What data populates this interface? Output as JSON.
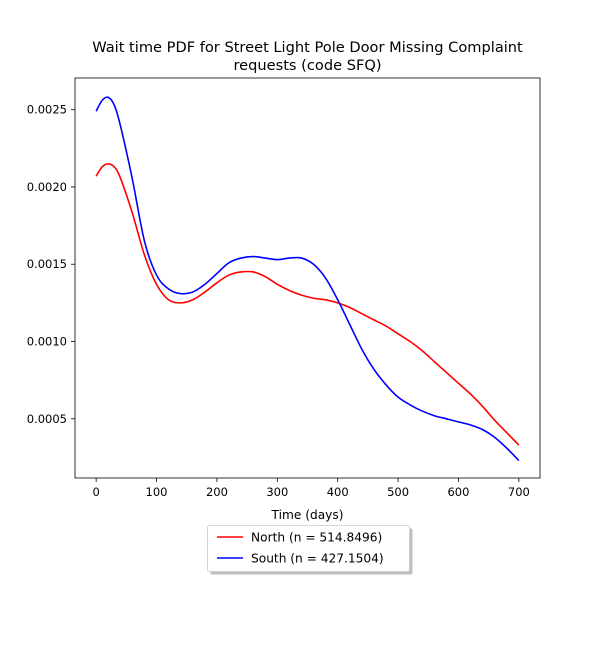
{
  "chart_data": {
    "type": "line",
    "title_line1": "Wait time PDF for Street Light Pole Door Missing Complaint",
    "title_line2": "requests (code SFQ)",
    "xlabel": "Time (days)",
    "ylabel": "",
    "xlim": [
      -35,
      735
    ],
    "ylim": [
      0.000117,
      0.002705
    ],
    "x_ticks": [
      0,
      100,
      200,
      300,
      400,
      500,
      600,
      700
    ],
    "x_tick_labels": [
      "0",
      "100",
      "200",
      "300",
      "400",
      "500",
      "600",
      "700"
    ],
    "y_ticks": [
      0.0005,
      0.001,
      0.0015,
      0.002,
      0.0025
    ],
    "y_tick_labels": [
      "0.0005",
      "0.0010",
      "0.0015",
      "0.0020",
      "0.0025"
    ],
    "grid": false,
    "legend_position": "below plot, centered",
    "series": [
      {
        "name": "North (n = 514.8496)",
        "color": "#ff0000",
        "x": [
          0,
          10,
          20,
          30,
          40,
          60,
          80,
          100,
          120,
          140,
          160,
          180,
          200,
          220,
          240,
          260,
          280,
          300,
          320,
          340,
          360,
          380,
          400,
          420,
          440,
          460,
          480,
          500,
          520,
          540,
          560,
          580,
          600,
          620,
          640,
          660,
          680,
          700
        ],
        "y": [
          0.00207,
          0.00213,
          0.00215,
          0.00213,
          0.00206,
          0.00183,
          0.00156,
          0.00137,
          0.00127,
          0.00125,
          0.00127,
          0.00132,
          0.00138,
          0.00143,
          0.00145,
          0.00145,
          0.00142,
          0.00137,
          0.00133,
          0.0013,
          0.00128,
          0.00127,
          0.00125,
          0.00122,
          0.00118,
          0.00114,
          0.0011,
          0.00105,
          0.001,
          0.00094,
          0.00087,
          0.0008,
          0.00073,
          0.00066,
          0.00058,
          0.00049,
          0.00041,
          0.00033
        ]
      },
      {
        "name": "South (n = 427.1504)",
        "color": "#0000ff",
        "x": [
          0,
          10,
          20,
          30,
          40,
          60,
          80,
          100,
          120,
          140,
          160,
          180,
          200,
          220,
          240,
          260,
          280,
          300,
          320,
          340,
          360,
          380,
          400,
          420,
          440,
          460,
          480,
          500,
          520,
          540,
          560,
          580,
          600,
          620,
          640,
          660,
          680,
          700
        ],
        "y": [
          0.00249,
          0.00256,
          0.00258,
          0.00253,
          0.0024,
          0.00205,
          0.00165,
          0.00143,
          0.00134,
          0.00131,
          0.00132,
          0.00137,
          0.00144,
          0.00151,
          0.00154,
          0.00155,
          0.00154,
          0.00153,
          0.00154,
          0.00154,
          0.0015,
          0.00141,
          0.00127,
          0.00111,
          0.00095,
          0.00082,
          0.00072,
          0.00064,
          0.00059,
          0.00055,
          0.00052,
          0.0005,
          0.00048,
          0.00046,
          0.00043,
          0.00038,
          0.00031,
          0.00023
        ]
      }
    ]
  }
}
